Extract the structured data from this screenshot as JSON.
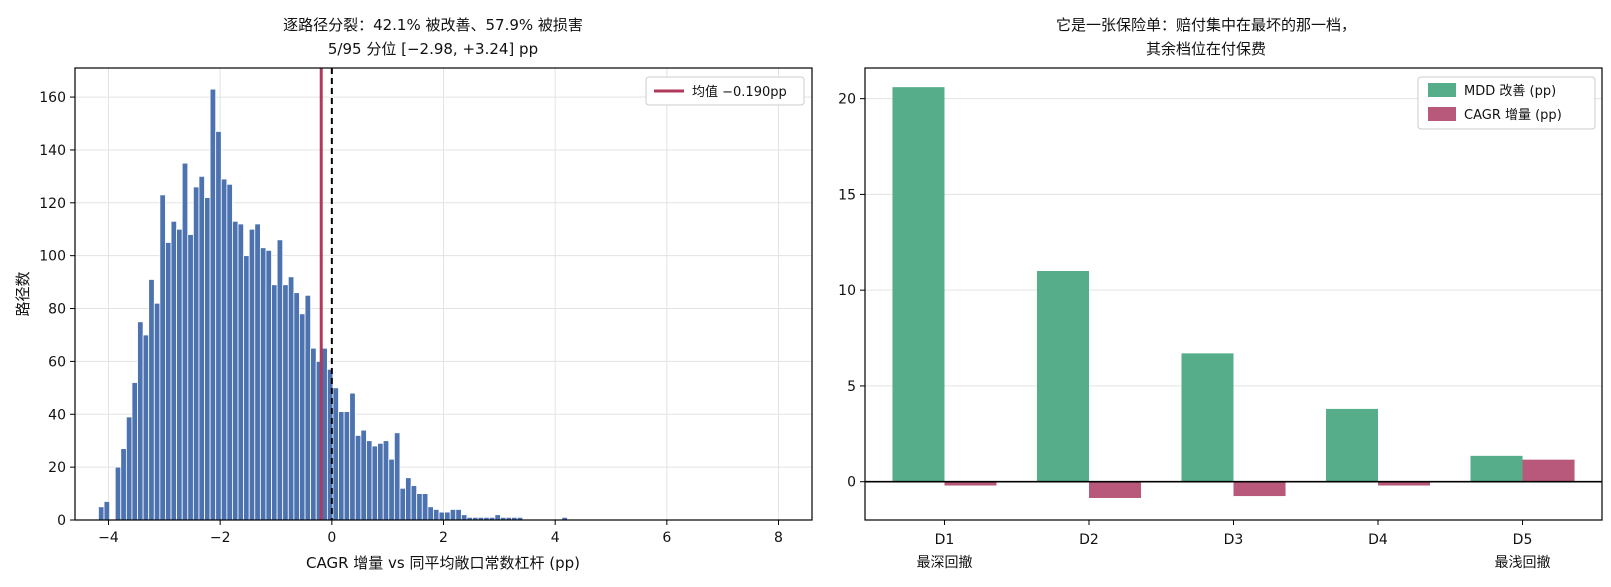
{
  "chart_data": [
    {
      "type": "bar",
      "subtype": "histogram",
      "title": "逐路径分裂：42.1% 被改善、57.9% 被损害",
      "subtitle": "5/95 分位 [−2.98, +3.24] pp",
      "xlabel": "CAGR 增量 vs 同平均敞口常数杠杆 (pp)",
      "ylabel": "路径数",
      "xlim": [
        -4.6,
        8.6
      ],
      "ylim": [
        0,
        171
      ],
      "xticks": [
        -4,
        -2,
        0,
        2,
        4,
        6,
        8
      ],
      "xtick_labels": [
        "−4",
        "−2",
        "0",
        "2",
        "4",
        "6",
        "8"
      ],
      "yticks": [
        0,
        20,
        40,
        60,
        80,
        100,
        120,
        140,
        160
      ],
      "grid": true,
      "bar_color": "#4C72B0",
      "bin_start": -4.18,
      "bin_width": 0.1,
      "values": [
        5,
        7,
        0,
        20,
        27,
        39,
        52,
        75,
        70,
        91,
        82,
        123,
        105,
        113,
        110,
        135,
        108,
        126,
        130,
        122,
        163,
        147,
        129,
        127,
        113,
        112,
        100,
        110,
        112,
        103,
        102,
        89,
        106,
        89,
        92,
        86,
        78,
        85,
        65,
        60,
        65,
        57,
        50,
        41,
        41,
        48,
        32,
        34,
        30,
        28,
        29,
        30,
        23,
        33,
        12,
        16,
        13,
        10,
        10,
        5,
        4,
        3,
        3,
        4,
        4,
        2,
        1,
        1,
        1,
        1,
        1,
        2,
        1,
        1,
        1,
        1,
        0,
        0,
        0,
        0,
        0,
        0,
        0,
        1
      ],
      "mean_line": {
        "x": -0.19,
        "color": "#B03A5C",
        "label": "均值 −0.190pp"
      },
      "zero_line": {
        "x": 0,
        "style": "dashed",
        "color": "#000000"
      },
      "legend": {
        "position": "top-right",
        "entries": [
          "均值 −0.190pp"
        ]
      }
    },
    {
      "type": "bar",
      "subtype": "grouped",
      "title": "它是一张保险单：赔付集中在最坏的那一档，",
      "subtitle": "其余档位在付保费",
      "categories": [
        "D1",
        "D2",
        "D3",
        "D4",
        "D5"
      ],
      "category_sublabels": [
        "最深回撤",
        "",
        "",
        "",
        "最浅回撤"
      ],
      "series": [
        {
          "name": "MDD 改善 (pp)",
          "color": "#55AD89",
          "values": [
            20.6,
            11.0,
            6.7,
            3.8,
            1.35
          ]
        },
        {
          "name": "CAGR 增量 (pp)",
          "color": "#B8587A",
          "values": [
            -0.2,
            -0.85,
            -0.75,
            -0.2,
            1.15
          ]
        }
      ],
      "ylim": [
        -2,
        21.6
      ],
      "yticks": [
        0,
        5,
        10,
        15,
        20
      ],
      "grid": true,
      "zero_line": true,
      "legend": {
        "position": "top-right",
        "entries": [
          "MDD 改善 (pp)",
          "CAGR 增量 (pp)"
        ]
      }
    }
  ]
}
